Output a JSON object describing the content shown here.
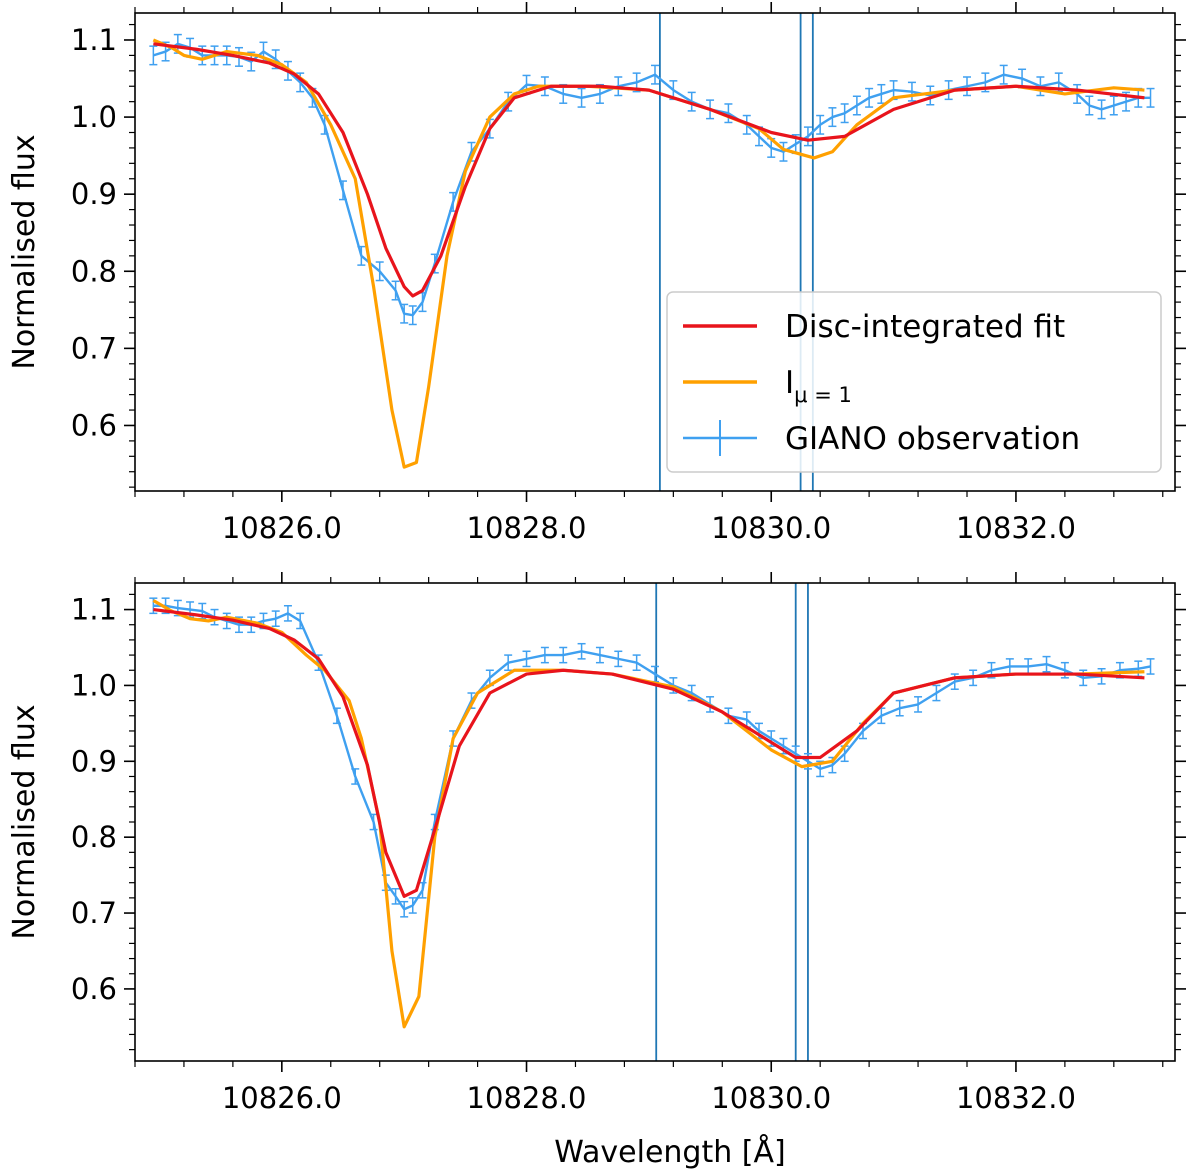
{
  "colors": {
    "fit": "#e8141c",
    "intensity": "#ffa000",
    "observation": "#3fa0f0",
    "vlines": "#1f77b4",
    "axes": "#000000"
  },
  "chart_data": [
    {
      "type": "line",
      "xlabel": "",
      "ylabel": "Normalised flux",
      "xlim": [
        10824.8,
        10833.3
      ],
      "ylim": [
        0.515,
        1.135
      ],
      "xticks": [
        10826.0,
        10828.0,
        10830.0,
        10832.0
      ],
      "xtick_labels": [
        "10826.0",
        "10828.0",
        "10830.0",
        "10832.0"
      ],
      "yticks": [
        0.6,
        0.7,
        0.8,
        0.9,
        1.0,
        1.1
      ],
      "ytick_labels": [
        "0.6",
        "0.7",
        "0.8",
        "0.9",
        "1.0",
        "1.1"
      ],
      "vlines": [
        10829.09,
        10830.24,
        10830.34
      ],
      "legend": {
        "placement": "lower right",
        "entries": [
          {
            "series": "fit",
            "label": "Disc-integrated fit"
          },
          {
            "series": "intensity",
            "label": "I",
            "subscript": "μ = 1"
          },
          {
            "series": "observation",
            "label": "GIANO observation"
          }
        ]
      },
      "series": [
        {
          "id": "fit",
          "name": "Disc-integrated fit",
          "x": [
            10824.95,
            10825.3,
            10825.6,
            10825.9,
            10826.1,
            10826.3,
            10826.5,
            10826.7,
            10826.85,
            10827.0,
            10827.07,
            10827.15,
            10827.3,
            10827.5,
            10827.7,
            10827.9,
            10828.2,
            10828.6,
            10829.0,
            10829.5,
            10830.0,
            10830.3,
            10830.6,
            10831.0,
            10831.5,
            10832.0,
            10832.5,
            10833.05
          ],
          "y": [
            1.095,
            1.088,
            1.08,
            1.07,
            1.056,
            1.03,
            0.98,
            0.9,
            0.83,
            0.78,
            0.768,
            0.775,
            0.82,
            0.91,
            0.985,
            1.025,
            1.04,
            1.04,
            1.035,
            1.01,
            0.98,
            0.97,
            0.975,
            1.01,
            1.035,
            1.04,
            1.035,
            1.025
          ]
        },
        {
          "id": "intensity",
          "name": "Iμ=1",
          "x": [
            10824.95,
            10825.1,
            10825.2,
            10825.35,
            10825.55,
            10825.8,
            10826.0,
            10826.2,
            10826.4,
            10826.6,
            10826.75,
            10826.9,
            10827.0,
            10827.1,
            10827.2,
            10827.35,
            10827.5,
            10827.7,
            10827.9,
            10828.1,
            10828.5,
            10829.0,
            10829.5,
            10829.9,
            10830.1,
            10830.35,
            10830.5,
            10830.7,
            10831.0,
            10831.5,
            10832.0,
            10832.4,
            10832.8,
            10833.05
          ],
          "y": [
            1.1,
            1.09,
            1.08,
            1.075,
            1.085,
            1.08,
            1.068,
            1.045,
            0.99,
            0.92,
            0.78,
            0.62,
            0.546,
            0.552,
            0.65,
            0.82,
            0.93,
            1.0,
            1.03,
            1.04,
            1.04,
            1.035,
            1.01,
            0.985,
            0.958,
            0.947,
            0.955,
            0.99,
            1.025,
            1.035,
            1.04,
            1.03,
            1.038,
            1.035
          ]
        },
        {
          "id": "observation",
          "name": "GIANO observation",
          "x": [
            10824.95,
            10825.05,
            10825.15,
            10825.25,
            10825.35,
            10825.45,
            10825.55,
            10825.65,
            10825.75,
            10825.85,
            10825.95,
            10826.05,
            10826.15,
            10826.25,
            10826.35,
            10826.5,
            10826.65,
            10826.8,
            10826.93,
            10827.0,
            10827.07,
            10827.15,
            10827.25,
            10827.4,
            10827.55,
            10827.7,
            10827.85,
            10828.0,
            10828.15,
            10828.3,
            10828.45,
            10828.6,
            10828.75,
            10828.9,
            10829.05,
            10829.2,
            10829.35,
            10829.5,
            10829.65,
            10829.8,
            10829.9,
            10830.0,
            10830.1,
            10830.2,
            10830.3,
            10830.4,
            10830.5,
            10830.6,
            10830.7,
            10830.8,
            10830.9,
            10831.0,
            10831.15,
            10831.3,
            10831.45,
            10831.6,
            10831.75,
            10831.9,
            10832.05,
            10832.2,
            10832.35,
            10832.5,
            10832.6,
            10832.7,
            10832.8,
            10832.9,
            10833.0,
            10833.1
          ],
          "y": [
            1.08,
            1.085,
            1.095,
            1.09,
            1.08,
            1.08,
            1.08,
            1.078,
            1.072,
            1.085,
            1.075,
            1.06,
            1.045,
            1.025,
            0.99,
            0.905,
            0.82,
            0.8,
            0.775,
            0.745,
            0.743,
            0.76,
            0.81,
            0.89,
            0.955,
            0.985,
            1.02,
            1.042,
            1.04,
            1.03,
            1.025,
            1.03,
            1.04,
            1.045,
            1.055,
            1.035,
            1.02,
            1.01,
            1.005,
            0.99,
            0.975,
            0.96,
            0.955,
            0.965,
            0.975,
            0.99,
            1.0,
            1.005,
            1.015,
            1.025,
            1.03,
            1.035,
            1.033,
            1.028,
            1.035,
            1.04,
            1.045,
            1.055,
            1.05,
            1.04,
            1.045,
            1.03,
            1.015,
            1.01,
            1.015,
            1.02,
            1.025,
            1.025
          ],
          "err": 0.012
        }
      ]
    },
    {
      "type": "line",
      "xlabel": "Wavelength [Å]",
      "ylabel": "Normalised flux",
      "xlim": [
        10824.8,
        10833.3
      ],
      "ylim": [
        0.505,
        1.135
      ],
      "xticks": [
        10826.0,
        10828.0,
        10830.0,
        10832.0
      ],
      "xtick_labels": [
        "10826.0",
        "10828.0",
        "10830.0",
        "10832.0"
      ],
      "yticks": [
        0.6,
        0.7,
        0.8,
        0.9,
        1.0,
        1.1
      ],
      "ytick_labels": [
        "0.6",
        "0.7",
        "0.8",
        "0.9",
        "1.0",
        "1.1"
      ],
      "vlines": [
        10829.06,
        10830.2,
        10830.3
      ],
      "series": [
        {
          "id": "fit",
          "name": "Disc-integrated fit",
          "x": [
            10824.95,
            10825.3,
            10825.6,
            10825.9,
            10826.1,
            10826.3,
            10826.5,
            10826.7,
            10826.85,
            10827.0,
            10827.1,
            10827.25,
            10827.45,
            10827.7,
            10828.0,
            10828.3,
            10828.7,
            10829.2,
            10829.6,
            10830.0,
            10830.2,
            10830.4,
            10830.7,
            10831.0,
            10831.5,
            10832.0,
            10832.5,
            10833.05
          ],
          "y": [
            1.1,
            1.093,
            1.086,
            1.075,
            1.06,
            1.035,
            0.985,
            0.895,
            0.78,
            0.722,
            0.73,
            0.81,
            0.92,
            0.99,
            1.015,
            1.02,
            1.015,
            0.995,
            0.965,
            0.925,
            0.905,
            0.905,
            0.94,
            0.99,
            1.01,
            1.015,
            1.015,
            1.01
          ]
        },
        {
          "id": "intensity",
          "name": "Iμ=1",
          "x": [
            10824.95,
            10825.1,
            10825.25,
            10825.4,
            10825.55,
            10825.8,
            10826.0,
            10826.2,
            10826.35,
            10826.55,
            10826.65,
            10826.8,
            10826.9,
            10827.0,
            10827.12,
            10827.25,
            10827.4,
            10827.6,
            10827.9,
            10828.3,
            10828.7,
            10829.2,
            10829.6,
            10830.0,
            10830.25,
            10830.5,
            10830.75,
            10831.0,
            10831.5,
            10832.0,
            10832.5,
            10833.05
          ],
          "y": [
            1.112,
            1.098,
            1.088,
            1.085,
            1.09,
            1.082,
            1.07,
            1.04,
            1.02,
            0.98,
            0.93,
            0.82,
            0.65,
            0.55,
            0.59,
            0.8,
            0.93,
            0.99,
            1.02,
            1.02,
            1.015,
            0.998,
            0.965,
            0.915,
            0.893,
            0.9,
            0.95,
            0.99,
            1.01,
            1.015,
            1.015,
            1.018
          ]
        },
        {
          "id": "observation",
          "name": "GIANO observation",
          "x": [
            10824.95,
            10825.05,
            10825.15,
            10825.25,
            10825.35,
            10825.45,
            10825.55,
            10825.65,
            10825.75,
            10825.85,
            10825.95,
            10826.05,
            10826.15,
            10826.3,
            10826.45,
            10826.6,
            10826.75,
            10826.85,
            10826.93,
            10827.0,
            10827.07,
            10827.15,
            10827.25,
            10827.4,
            10827.55,
            10827.7,
            10827.85,
            10828.0,
            10828.15,
            10828.3,
            10828.45,
            10828.6,
            10828.75,
            10828.9,
            10829.05,
            10829.2,
            10829.35,
            10829.5,
            10829.65,
            10829.8,
            10829.9,
            10830.0,
            10830.1,
            10830.2,
            10830.3,
            10830.4,
            10830.5,
            10830.6,
            10830.75,
            10830.9,
            10831.05,
            10831.2,
            10831.35,
            10831.5,
            10831.65,
            10831.8,
            10831.95,
            10832.1,
            10832.25,
            10832.4,
            10832.55,
            10832.7,
            10832.85,
            10833.0,
            10833.1
          ],
          "y": [
            1.105,
            1.105,
            1.102,
            1.1,
            1.098,
            1.09,
            1.085,
            1.08,
            1.08,
            1.085,
            1.088,
            1.095,
            1.085,
            1.03,
            0.96,
            0.88,
            0.82,
            0.74,
            0.722,
            0.705,
            0.71,
            0.73,
            0.82,
            0.93,
            0.98,
            1.01,
            1.03,
            1.035,
            1.04,
            1.04,
            1.045,
            1.04,
            1.035,
            1.03,
            1.015,
            1.0,
            0.99,
            0.975,
            0.96,
            0.955,
            0.94,
            0.93,
            0.92,
            0.91,
            0.9,
            0.89,
            0.895,
            0.91,
            0.94,
            0.96,
            0.97,
            0.975,
            0.99,
            1.005,
            1.01,
            1.02,
            1.025,
            1.025,
            1.028,
            1.02,
            1.01,
            1.012,
            1.02,
            1.022,
            1.025
          ],
          "err": 0.01
        }
      ]
    }
  ]
}
